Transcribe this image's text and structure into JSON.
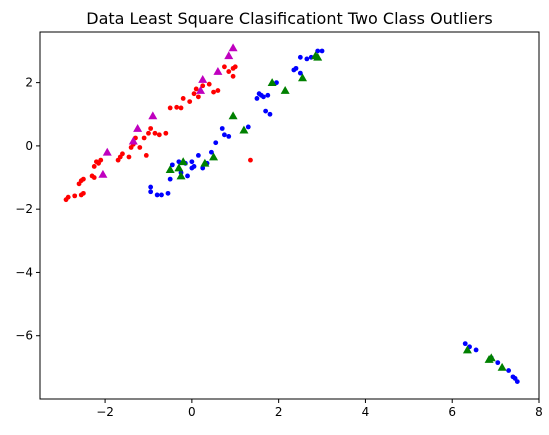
{
  "chart_data": {
    "type": "scatter",
    "title": "Data Least Square Clasificationt Two Class Outliers",
    "xlabel": "",
    "ylabel": "",
    "xlim": [
      -3.5,
      8.0
    ],
    "ylim": [
      -8.0,
      3.6
    ],
    "xticks": [
      -2,
      0,
      2,
      4,
      6,
      8
    ],
    "xtick_labels": [
      "−2",
      "0",
      "2",
      "4",
      "6",
      "8"
    ],
    "yticks": [
      2,
      0,
      -2,
      -4,
      -6
    ],
    "ytick_labels": [
      "2",
      "0",
      "−2",
      "−4",
      "−6"
    ],
    "grid": false,
    "series": [
      {
        "marker": "circle",
        "color": "#ff0000",
        "points": [
          [
            -2.9,
            -1.7
          ],
          [
            -2.85,
            -1.62
          ],
          [
            -2.7,
            -1.58
          ],
          [
            -2.55,
            -1.55
          ],
          [
            -2.5,
            -1.5
          ],
          [
            -2.6,
            -1.2
          ],
          [
            -2.55,
            -1.1
          ],
          [
            -2.5,
            -1.05
          ],
          [
            -2.3,
            -0.95
          ],
          [
            -2.25,
            -1.0
          ],
          [
            -2.25,
            -0.65
          ],
          [
            -2.2,
            -0.5
          ],
          [
            -2.15,
            -0.55
          ],
          [
            -2.1,
            -0.45
          ],
          [
            -1.7,
            -0.45
          ],
          [
            -1.65,
            -0.35
          ],
          [
            -1.6,
            -0.25
          ],
          [
            -1.45,
            -0.35
          ],
          [
            -1.4,
            -0.05
          ],
          [
            -1.35,
            0.05
          ],
          [
            -1.3,
            0.25
          ],
          [
            -1.2,
            -0.05
          ],
          [
            -1.1,
            0.25
          ],
          [
            -1.0,
            0.4
          ],
          [
            -0.95,
            0.55
          ],
          [
            -0.85,
            0.4
          ],
          [
            -0.75,
            0.35
          ],
          [
            -0.6,
            0.4
          ],
          [
            -0.5,
            1.2
          ],
          [
            -0.35,
            1.22
          ],
          [
            -0.25,
            1.2
          ],
          [
            -0.2,
            1.5
          ],
          [
            -0.05,
            1.4
          ],
          [
            0.05,
            1.65
          ],
          [
            0.1,
            1.8
          ],
          [
            0.15,
            1.55
          ],
          [
            0.25,
            1.9
          ],
          [
            0.4,
            1.95
          ],
          [
            0.5,
            1.7
          ],
          [
            0.6,
            1.75
          ],
          [
            0.75,
            2.5
          ],
          [
            0.85,
            2.35
          ],
          [
            0.95,
            2.45
          ],
          [
            0.95,
            2.2
          ],
          [
            1.0,
            2.5
          ],
          [
            1.35,
            -0.45
          ],
          [
            -1.05,
            -0.3
          ]
        ]
      },
      {
        "marker": "triangle",
        "color": "#bf00bf",
        "points": [
          [
            -2.05,
            -0.9
          ],
          [
            -1.95,
            -0.2
          ],
          [
            -1.35,
            0.15
          ],
          [
            -1.25,
            0.55
          ],
          [
            -0.9,
            0.95
          ],
          [
            0.2,
            1.75
          ],
          [
            0.25,
            2.1
          ],
          [
            0.6,
            2.35
          ],
          [
            0.85,
            2.85
          ],
          [
            0.95,
            3.1
          ]
        ]
      },
      {
        "marker": "circle",
        "color": "#0000ff",
        "points": [
          [
            -0.95,
            -1.3
          ],
          [
            -0.95,
            -1.45
          ],
          [
            -0.8,
            -1.55
          ],
          [
            -0.7,
            -1.55
          ],
          [
            -0.55,
            -1.5
          ],
          [
            -0.5,
            -1.05
          ],
          [
            -0.45,
            -0.6
          ],
          [
            -0.3,
            -0.5
          ],
          [
            -0.25,
            -0.85
          ],
          [
            -0.15,
            -0.55
          ],
          [
            -0.1,
            -0.95
          ],
          [
            0.0,
            -0.5
          ],
          [
            0.0,
            -0.7
          ],
          [
            0.05,
            -0.65
          ],
          [
            0.15,
            -0.3
          ],
          [
            0.25,
            -0.7
          ],
          [
            0.35,
            -0.55
          ],
          [
            0.45,
            -0.2
          ],
          [
            0.55,
            0.1
          ],
          [
            0.7,
            0.55
          ],
          [
            0.75,
            0.35
          ],
          [
            0.85,
            0.3
          ],
          [
            1.3,
            0.6
          ],
          [
            1.5,
            1.5
          ],
          [
            1.55,
            1.65
          ],
          [
            1.6,
            1.6
          ],
          [
            1.65,
            1.55
          ],
          [
            1.7,
            1.1
          ],
          [
            1.75,
            1.6
          ],
          [
            1.8,
            1.0
          ],
          [
            1.95,
            2.0
          ],
          [
            2.35,
            2.4
          ],
          [
            2.4,
            2.45
          ],
          [
            2.5,
            2.3
          ],
          [
            2.5,
            2.8
          ],
          [
            2.65,
            2.75
          ],
          [
            2.75,
            2.8
          ],
          [
            2.9,
            3.0
          ],
          [
            3.0,
            3.0
          ],
          [
            6.3,
            -6.25
          ],
          [
            6.4,
            -6.35
          ],
          [
            6.55,
            -6.45
          ],
          [
            6.9,
            -6.7
          ],
          [
            7.05,
            -6.85
          ],
          [
            7.3,
            -7.1
          ],
          [
            7.4,
            -7.3
          ],
          [
            7.45,
            -7.35
          ],
          [
            7.5,
            -7.45
          ]
        ]
      },
      {
        "marker": "triangle",
        "color": "#008000",
        "points": [
          [
            -0.5,
            -0.75
          ],
          [
            -0.3,
            -0.7
          ],
          [
            -0.25,
            -0.95
          ],
          [
            -0.2,
            -0.5
          ],
          [
            0.3,
            -0.55
          ],
          [
            0.5,
            -0.35
          ],
          [
            0.95,
            0.95
          ],
          [
            1.2,
            0.5
          ],
          [
            1.85,
            2.0
          ],
          [
            2.15,
            1.75
          ],
          [
            2.55,
            2.15
          ],
          [
            2.85,
            2.85
          ],
          [
            2.9,
            2.8
          ],
          [
            6.35,
            -6.45
          ],
          [
            6.85,
            -6.75
          ],
          [
            6.9,
            -6.7
          ],
          [
            7.15,
            -7.0
          ]
        ]
      }
    ]
  }
}
